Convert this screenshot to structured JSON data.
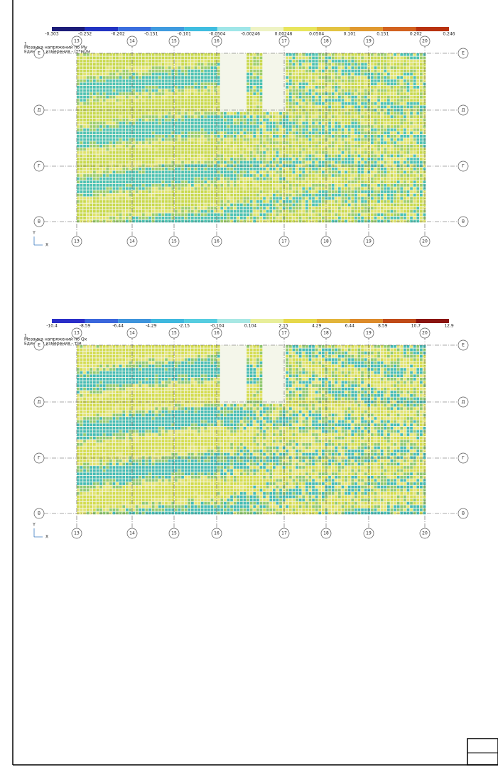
{
  "plots": [
    {
      "scale": [
        "-0.303",
        "-0.252",
        "-0.202",
        "-0.151",
        "-0.101",
        "-0.0504",
        "-0.00246",
        "0.00246",
        "0.0504",
        "0.101",
        "0.151",
        "0.202",
        "0.246"
      ],
      "index": "1",
      "title": "Мозаика напряжений по My",
      "units": "Единицы измерения - (т*м)/м",
      "columns": [
        "13",
        "14",
        "15",
        "16",
        "17",
        "18",
        "19",
        "20"
      ],
      "rows": [
        "Е",
        "Д",
        "Г",
        "В"
      ],
      "axis_y": "Y",
      "axis_x": "X"
    },
    {
      "scale": [
        "-10.4",
        "-8.59",
        "-6.44",
        "-4.29",
        "-2.15",
        "-0.104",
        "0.104",
        "2.15",
        "4.29",
        "6.44",
        "8.59",
        "10.7",
        "12.9"
      ],
      "index": "1",
      "title": "Мозаика напряжений по Qx",
      "units": "Единицы измерения - т/м",
      "columns": [
        "13",
        "14",
        "15",
        "16",
        "17",
        "18",
        "19",
        "20"
      ],
      "rows": [
        "Е",
        "Д",
        "Г",
        "В"
      ],
      "axis_y": "Y",
      "axis_x": "X"
    }
  ]
}
